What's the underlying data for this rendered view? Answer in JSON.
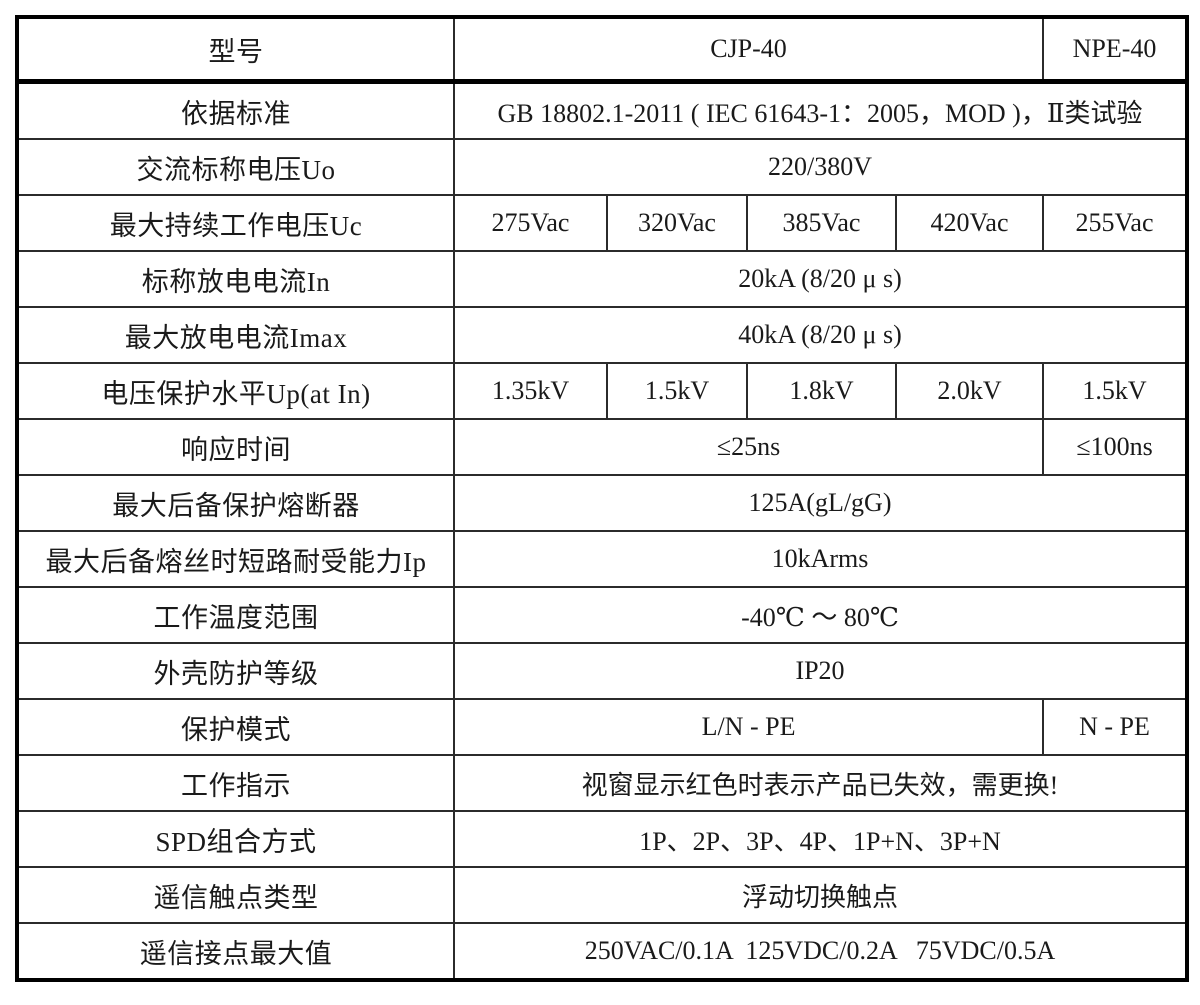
{
  "document": {
    "type": "product-specification-table",
    "colors": {
      "background": "#ffffff",
      "border": "#000000",
      "inner_border": "#2b2b2b",
      "text": "#1a1a1a"
    },
    "table": {
      "num_columns": 6,
      "rows": [
        {
          "label": "型号",
          "cells": [
            {
              "text": "CJP-40",
              "span": 4
            },
            {
              "text": "NPE-40",
              "span": 1
            }
          ]
        },
        {
          "label": "依据标准",
          "cells": [
            {
              "text": "GB 18802.1-2011 ( IEC 61643-1：2005，MOD )，Ⅱ类试验",
              "span": 5
            }
          ]
        },
        {
          "label": "交流标称电压Uo",
          "cells": [
            {
              "text": "220/380V",
              "span": 5
            }
          ]
        },
        {
          "label": "最大持续工作电压Uc",
          "cells": [
            {
              "text": "275Vac",
              "span": 1
            },
            {
              "text": "320Vac",
              "span": 1
            },
            {
              "text": "385Vac",
              "span": 1
            },
            {
              "text": "420Vac",
              "span": 1
            },
            {
              "text": "255Vac",
              "span": 1
            }
          ]
        },
        {
          "label": "标称放电电流In",
          "cells": [
            {
              "text": "20kA (8/20 μ s)",
              "span": 5
            }
          ]
        },
        {
          "label": "最大放电电流Imax",
          "cells": [
            {
              "text": "40kA (8/20 μ s)",
              "span": 5
            }
          ]
        },
        {
          "label": "电压保护水平Up(at In)",
          "cells": [
            {
              "text": "1.35kV",
              "span": 1
            },
            {
              "text": "1.5kV",
              "span": 1
            },
            {
              "text": "1.8kV",
              "span": 1
            },
            {
              "text": "2.0kV",
              "span": 1
            },
            {
              "text": "1.5kV",
              "span": 1
            }
          ]
        },
        {
          "label": "响应时间",
          "cells": [
            {
              "text": "≤25ns",
              "span": 4
            },
            {
              "text": "≤100ns",
              "span": 1
            }
          ]
        },
        {
          "label": "最大后备保护熔断器",
          "cells": [
            {
              "text": "125A(gL/gG)",
              "span": 5
            }
          ]
        },
        {
          "label": "最大后备熔丝时短路耐受能力Ip",
          "cells": [
            {
              "text": "10kArms",
              "span": 5
            }
          ]
        },
        {
          "label": "工作温度范围",
          "cells": [
            {
              "text": "-40℃ ～ 80℃",
              "span": 5
            }
          ]
        },
        {
          "label": "外壳防护等级",
          "cells": [
            {
              "text": "IP20",
              "span": 5
            }
          ]
        },
        {
          "label": "保护模式",
          "cells": [
            {
              "text": "L/N - PE",
              "span": 4
            },
            {
              "text": "N - PE",
              "span": 1
            }
          ]
        },
        {
          "label": "工作指示",
          "cells": [
            {
              "text": "视窗显示红色时表示产品已失效，需更换!",
              "span": 5
            }
          ]
        },
        {
          "label": "SPD组合方式",
          "cells": [
            {
              "text": "1P、2P、3P、4P、1P+N、3P+N",
              "span": 5
            }
          ]
        },
        {
          "label": "遥信触点类型",
          "cells": [
            {
              "text": "浮动切换触点",
              "span": 5
            }
          ]
        },
        {
          "label": "遥信接点最大值",
          "cells": [
            {
              "text": "250VAC/0.1A  125VDC/0.2A   75VDC/0.5A",
              "span": 5
            }
          ]
        }
      ]
    }
  }
}
